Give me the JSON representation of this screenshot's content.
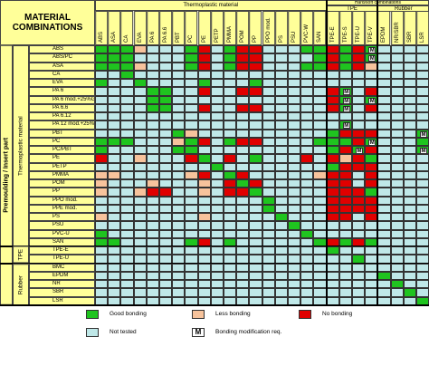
{
  "title": "MATERIAL COMBINATIONS",
  "side_label": "Premoulding / Insert part",
  "top_label": "Hard/soft combinations",
  "column_groups": [
    {
      "label": "Thermoplastic material",
      "columns": [
        "ABS",
        "ASA",
        "CA",
        "EVA",
        "PA 6",
        "PA 6.6",
        "PBT",
        "PC",
        "PE",
        "PETP",
        "PMMA",
        "POM",
        "PP",
        "PPO mod.",
        "PS",
        "PSU",
        "PVC-W",
        "SAN"
      ]
    },
    {
      "label": "TPE",
      "columns": [
        "TPE-E",
        "TPE-S",
        "TPE-U",
        "TPE-V"
      ]
    },
    {
      "label": "Rubber",
      "columns": [
        "EPDM",
        "NR/SBR",
        "SBR",
        "LSR"
      ]
    }
  ],
  "row_groups": [
    {
      "label": "Thermoplastic material",
      "rows": [
        {
          "name": "ABS",
          "cells": "GGGLTTTGNTGNNTTTGGNGNMTTTT"
        },
        {
          "name": "ABS/PC",
          "cells": "GGGTTTTGNTGNNTTTTGNGNMTTTT"
        },
        {
          "name": "ASA",
          "cells": "GGGLTTTGNTGNNTTTGGNGNLTTTT"
        },
        {
          "name": "CA",
          "cells": "TTGTTTTTTTTTTTTTTTTTTTTTTT"
        },
        {
          "name": "EVA",
          "cells": "GTTGTTTTGTTTGTTTTTTTTTTTTT"
        },
        {
          "name": "PA 6",
          "cells": "TTTTGGTTNTTNNTTTTTNMTNTTTT"
        },
        {
          "name": "PA 6 mod.+25%GF",
          "cells": "TTTTGGTTTTTTTTTTTTNMTMTTTT"
        },
        {
          "name": "PA 6.6",
          "cells": "TTTTGGTTNTTNNTTTTTNMTNTTTT"
        },
        {
          "name": "PA 6.12",
          "cells": "TTTTTTTTTTTTTTTTTTTTTTTTTT"
        },
        {
          "name": "PA 12 mod.+25%GF",
          "cells": "TTTTTTTTTTTTTTTTTTTMTTTTTT"
        },
        {
          "name": "PBT",
          "cells": "TTTTTTGLTTTTTTTTTTGNNNTTTM"
        },
        {
          "name": "PC",
          "cells": "GGGTTTLGNTGNNTTTTGGGNMTTTG"
        },
        {
          "name": "PC/PBT",
          "cells": "GTTTTTGGTTTTTTTTTTGNMNTTTM"
        },
        {
          "name": "PE",
          "cells": "NTTLTTTNGTNTGTTTNTNLNGTTTT"
        },
        {
          "name": "PETP",
          "cells": "TTTTTTTTTGTTTTTTTTGNNNTTTT"
        },
        {
          "name": "PMMA",
          "cells": "LLTTTTTLNTGNTTTTTLNNTNTTTT"
        },
        {
          "name": "POM",
          "cells": "LTTTLTTTLTNGNTTTTTNNTNTTTT"
        },
        {
          "name": "PP",
          "cells": "LTTLNNTTLTNNGTTTTTNNNGTTTT"
        },
        {
          "name": "PPO mod.",
          "cells": "TTTTTTTTTTTTTGTTTTNNNNTTTT"
        },
        {
          "name": "PPE mod.",
          "cells": "TTTTTTTTTTTTTGTTTTNNNNTTTT"
        },
        {
          "name": "PS",
          "cells": "LTTTTTTTLTTTTTGTTTNNTNTTTT"
        },
        {
          "name": "PSU",
          "cells": "TTTTTTTTTTTTTTTGTTTTTTTTTT"
        },
        {
          "name": "PVC-U",
          "cells": "GTTTTTTTTTTTTTTTGTTTTTTTTT"
        },
        {
          "name": "SAN",
          "cells": "GGTTTTTGNTGTTTTTTGNGNGTTTT"
        }
      ]
    },
    {
      "label": "TPE",
      "rows": [
        {
          "name": "TPE-E",
          "cells": "TTTTTTTTTTTTTTTTTTGTTTTTTT"
        },
        {
          "name": "TPE-U",
          "cells": "TTTTTTTTTTTTTTTTTTTTGTTTTT"
        }
      ]
    },
    {
      "label": "Rubber",
      "rows": [
        {
          "name": "BMC",
          "cells": "TTTTTTTTTTTTTTTTTTTTTTTTTT"
        },
        {
          "name": "EPDM",
          "cells": "TTTTTTTTTTTTTTTTTTTTTTGTTT"
        },
        {
          "name": "NR",
          "cells": "TTTTTTTTTTTTTTTTTTTTTTTGTT"
        },
        {
          "name": "SBR",
          "cells": "TTTTTTTTTTTTTTTTTTTTTTTTGT"
        },
        {
          "name": "LSR",
          "cells": "TTTTTTTTTTTTTTTTTTTTTTTTTG"
        }
      ]
    }
  ],
  "legend": [
    {
      "code": "G",
      "label": "Good bonding",
      "color": "#1fc41f"
    },
    {
      "code": "L",
      "label": "Less bonding",
      "color": "#f7c39c"
    },
    {
      "code": "N",
      "label": "No bonding",
      "color": "#e00000"
    },
    {
      "code": "T",
      "label": "Not tested",
      "color": "#bfe8e8"
    },
    {
      "code": "M",
      "label": "Bonding modification req.",
      "color": "#ffffff"
    }
  ]
}
